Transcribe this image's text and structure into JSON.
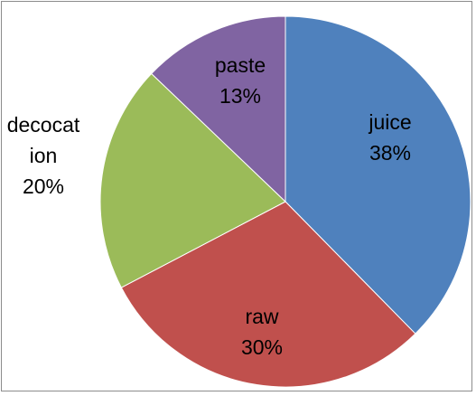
{
  "chart_data": {
    "type": "pie",
    "slices": [
      {
        "name": "juice",
        "value": 38,
        "pct_label": "38%",
        "color": "#4f81bd",
        "label_lines": [
          "juice",
          "38%"
        ]
      },
      {
        "name": "raw",
        "value": 30,
        "pct_label": "30%",
        "color": "#c0504d",
        "label_lines": [
          "raw",
          "30%"
        ]
      },
      {
        "name": "decocation",
        "value": 20,
        "pct_label": "20%",
        "color": "#9bbb59",
        "label_lines": [
          "decocat",
          "ion",
          "20%"
        ]
      },
      {
        "name": "paste",
        "value": 13,
        "pct_label": "13%",
        "color": "#8064a2",
        "label_lines": [
          "paste",
          "13%"
        ]
      }
    ],
    "start_angle": "12 o'clock",
    "direction": "clockwise",
    "legend": "none"
  }
}
